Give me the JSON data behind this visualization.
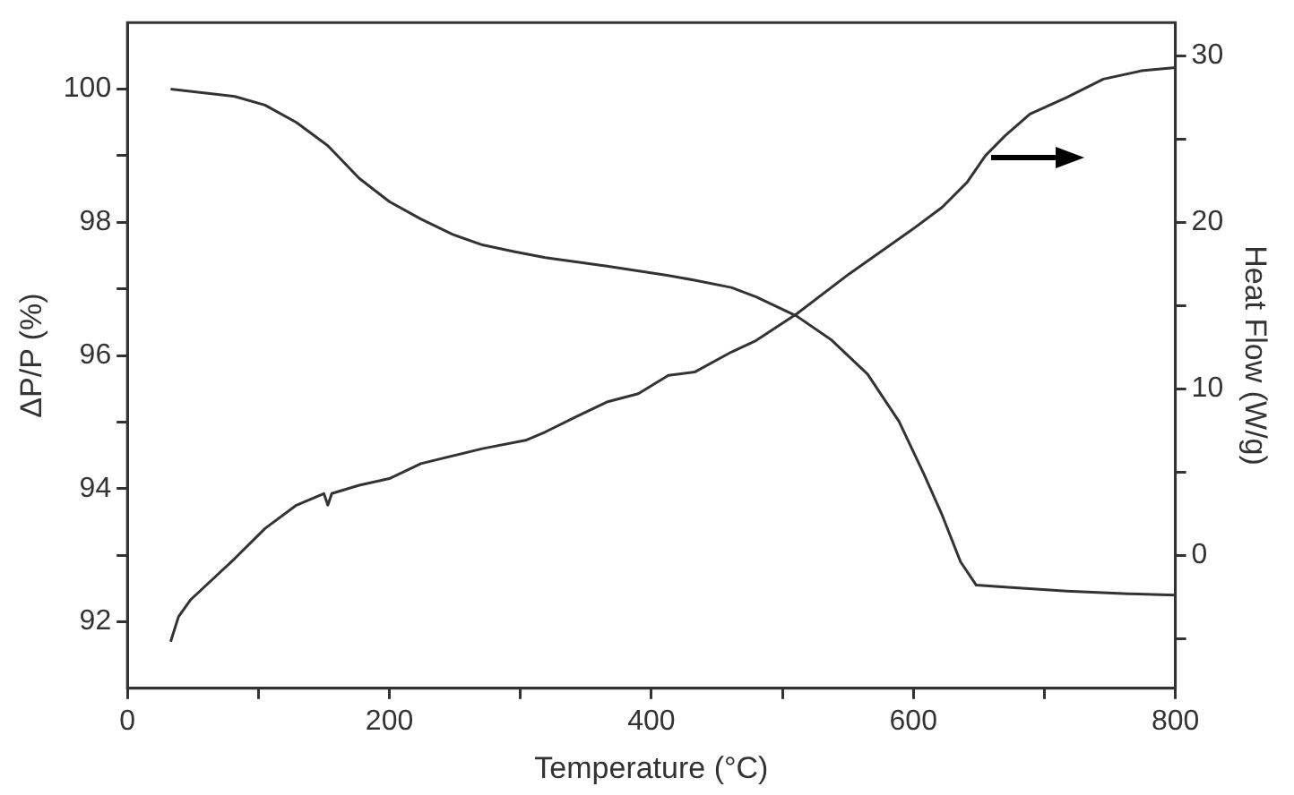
{
  "chart_data": {
    "type": "line",
    "xlabel": "Temperature (°C)",
    "ylabel": "ΔP/P (%)",
    "y2label": "Heat Flow (W/g)",
    "xlim": [
      0,
      800
    ],
    "xticks": [
      0,
      {
        "value": 100,
        "label": null
      },
      200,
      {
        "value": 300,
        "label": null
      },
      400,
      {
        "value": 500,
        "label": null
      },
      600,
      {
        "value": 700,
        "label": null
      },
      800
    ],
    "ylim": [
      91,
      101
    ],
    "yticks": [
      92,
      {
        "value": 93,
        "label": null
      },
      94,
      {
        "value": 95,
        "label": null
      },
      96,
      {
        "value": 97,
        "label": null
      },
      98,
      {
        "value": 99,
        "label": null
      },
      100
    ],
    "y2lim": [
      -8,
      32
    ],
    "y2ticks": [
      {
        "value": -5,
        "label": null
      },
      0,
      {
        "value": 5,
        "label": null
      },
      10,
      {
        "value": 15,
        "label": null
      },
      20,
      {
        "value": 25,
        "label": null
      },
      30
    ],
    "legend": false,
    "marker": "none",
    "line_style": "solid",
    "series": [
      {
        "color": "#333333",
        "x": [
          33,
          82,
          105,
          129,
          153,
          177,
          200,
          224,
          248,
          271,
          295,
          319,
          366,
          413,
          433,
          461,
          480,
          511,
          537,
          565,
          589,
          608,
          622,
          636,
          648,
          670,
          717,
          764,
          800
        ],
        "values": [
          100,
          99.89,
          99.76,
          99.5,
          99.15,
          98.66,
          98.31,
          98.05,
          97.82,
          97.66,
          97.56,
          97.47,
          97.34,
          97.2,
          97.13,
          97.02,
          96.88,
          96.59,
          96.24,
          95.72,
          95.01,
          94.22,
          93.6,
          92.9,
          92.55,
          92.52,
          92.46,
          92.42,
          92.4
        ]
      },
      {
        "color": "#333333",
        "axis": "y2",
        "x": [
          33,
          39,
          48,
          82,
          105,
          129,
          150,
          153,
          156,
          177,
          200,
          224,
          271,
          304,
          319,
          342,
          366,
          390,
          413,
          433,
          461,
          480,
          511,
          551,
          598,
          622,
          641,
          655,
          670,
          689,
          717,
          745,
          774,
          800
        ],
        "values": [
          -5.2,
          -3.7,
          -2.7,
          -0.2,
          1.6,
          3.0,
          3.7,
          3.0,
          3.7,
          4.2,
          4.6,
          5.5,
          6.4,
          6.9,
          7.4,
          8.3,
          9.2,
          9.7,
          10.8,
          11.0,
          12.2,
          12.9,
          14.5,
          16.9,
          19.5,
          20.9,
          22.4,
          24.0,
          25.2,
          26.5,
          27.5,
          28.6,
          29.1,
          29.3
        ]
      }
    ]
  }
}
